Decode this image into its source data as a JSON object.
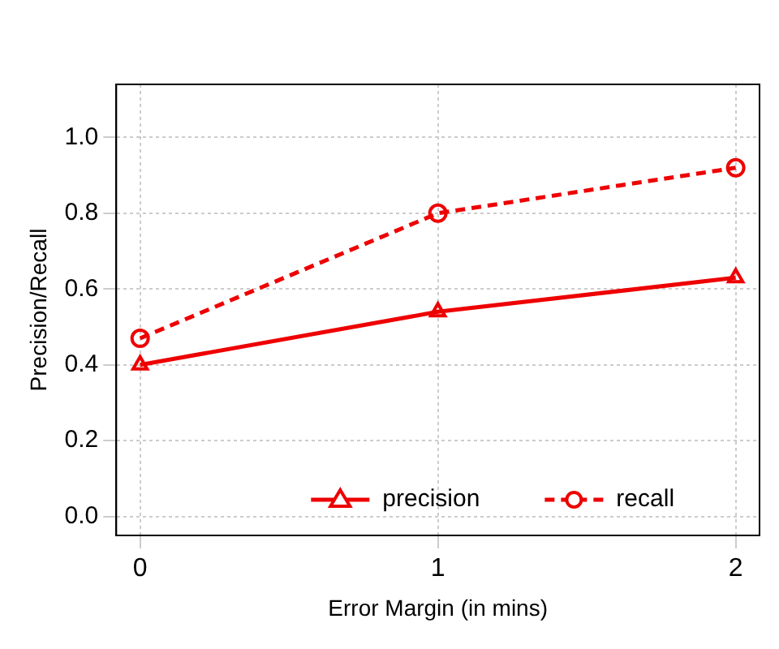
{
  "chart_data": {
    "type": "line",
    "xlabel": "Error Margin (in mins)",
    "ylabel": "Precision/Recall",
    "x": [
      0,
      1,
      2
    ],
    "series": [
      {
        "name": "precision",
        "color": "#ee0000",
        "values": [
          0.4,
          0.54,
          0.63
        ],
        "marker": "triangle",
        "line_style": "solid"
      },
      {
        "name": "recall",
        "color": "#ee0000",
        "values": [
          0.47,
          0.8,
          0.92
        ],
        "marker": "circle",
        "line_style": "dashed"
      }
    ],
    "xlim": [
      -0.08,
      2.08
    ],
    "xticks": [
      0,
      1,
      2
    ],
    "ylim": [
      -0.05,
      1.14
    ],
    "yticks": [
      {
        "value": 0,
        "label": "0.0"
      },
      {
        "value": 0.2,
        "label": "0.2"
      },
      {
        "value": 0.4,
        "label": "0.4"
      },
      {
        "value": 0.6,
        "label": "0.6"
      },
      {
        "value": 0.8,
        "label": "0.8"
      },
      {
        "value": 1,
        "label": "1.0"
      }
    ],
    "grid": true,
    "legend": "bottom right"
  }
}
